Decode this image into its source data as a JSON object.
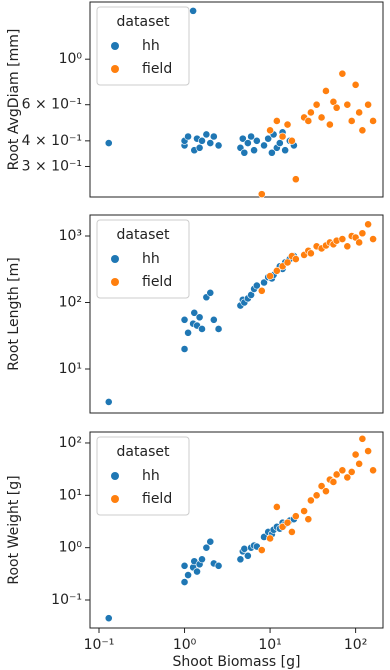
{
  "chart_data": [
    {
      "type": "scatter",
      "ylabel": "Root AvgDiam [mm]",
      "xscale": "log",
      "yscale": "log",
      "xlim": [
        0.0785,
        209
      ],
      "ylim": [
        0.213,
        1.9
      ],
      "yticks": [
        {
          "value": 1,
          "label": "10⁰"
        },
        {
          "value": 0.6,
          "label": "6 × 10⁻¹"
        },
        {
          "value": 0.4,
          "label": "4 × 10⁻¹"
        },
        {
          "value": 0.3,
          "label": "3 × 10⁻¹"
        }
      ],
      "legend_title": "dataset",
      "legend": "upper left",
      "series": [
        {
          "name": "hh",
          "color": "#1f77b4",
          "x": [
            0.13,
            1.0,
            1.0,
            1.1,
            1.26,
            1.3,
            1.4,
            1.5,
            1.6,
            1.8,
            2.0,
            2.2,
            2.5,
            4.5,
            4.8,
            5.0,
            5.5,
            6.0,
            6.5,
            7.0,
            8.5,
            9.5,
            10.5,
            11,
            12,
            13,
            14,
            15,
            17,
            19
          ],
          "values": [
            0.39,
            0.38,
            0.4,
            0.42,
            1.72,
            0.36,
            0.41,
            0.37,
            0.4,
            0.43,
            0.39,
            0.42,
            0.38,
            0.37,
            0.41,
            0.35,
            0.39,
            0.42,
            0.36,
            0.4,
            0.38,
            0.41,
            0.35,
            0.43,
            0.37,
            0.39,
            0.44,
            0.36,
            0.4,
            0.38
          ]
        },
        {
          "name": "field",
          "color": "#ff7f0e",
          "x": [
            8,
            10,
            12,
            14,
            16,
            18,
            20,
            25,
            28,
            30,
            35,
            40,
            45,
            50,
            55,
            60,
            70,
            80,
            90,
            100,
            110,
            120,
            140,
            160
          ],
          "values": [
            0.22,
            0.45,
            0.5,
            0.42,
            0.48,
            0.4,
            0.26,
            0.52,
            0.5,
            0.55,
            0.6,
            0.52,
            0.7,
            0.48,
            0.62,
            0.58,
            0.85,
            0.6,
            0.5,
            0.75,
            0.55,
            0.45,
            0.6,
            0.5
          ]
        }
      ]
    },
    {
      "type": "scatter",
      "ylabel": "Root Length [m]",
      "xscale": "log",
      "yscale": "log",
      "xlim": [
        0.0785,
        209
      ],
      "ylim": [
        2.18,
        2070
      ],
      "yticks": [
        {
          "value": 1000,
          "label": "10³"
        },
        {
          "value": 100,
          "label": "10²"
        },
        {
          "value": 10,
          "label": "10¹"
        }
      ],
      "legend_title": "dataset",
      "legend": "upper left",
      "series": [
        {
          "name": "hh",
          "color": "#1f77b4",
          "x": [
            0.13,
            1.0,
            1.0,
            1.1,
            1.26,
            1.3,
            1.4,
            1.5,
            1.6,
            1.8,
            2.0,
            2.2,
            2.5,
            4.5,
            4.8,
            5.0,
            5.5,
            6.0,
            6.5,
            7.0,
            8.5,
            9.5,
            10.5,
            11,
            12,
            13,
            14,
            15,
            17,
            19
          ],
          "values": [
            3.2,
            55,
            20,
            35,
            48,
            70,
            45,
            60,
            40,
            120,
            140,
            55,
            40,
            90,
            110,
            100,
            115,
            130,
            160,
            180,
            200,
            240,
            230,
            260,
            300,
            350,
            320,
            400,
            450,
            500
          ]
        },
        {
          "name": "field",
          "color": "#ff7f0e",
          "x": [
            8,
            10,
            12,
            14,
            16,
            18,
            20,
            25,
            28,
            30,
            35,
            40,
            45,
            50,
            55,
            60,
            70,
            80,
            90,
            100,
            110,
            120,
            140,
            160
          ],
          "values": [
            150,
            250,
            300,
            350,
            400,
            500,
            450,
            520,
            600,
            550,
            700,
            650,
            720,
            800,
            750,
            850,
            900,
            700,
            1000,
            950,
            800,
            1100,
            1500,
            900
          ]
        }
      ]
    },
    {
      "type": "scatter",
      "ylabel": "Root Weight [g]",
      "xlabel": "Shoot Biomass [g]",
      "xscale": "log",
      "yscale": "log",
      "xlim": [
        0.0785,
        209
      ],
      "ylim": [
        0.0292,
        162
      ],
      "xticks": [
        {
          "value": 0.1,
          "label": "10⁻¹"
        },
        {
          "value": 1,
          "label": "10⁰"
        },
        {
          "value": 10,
          "label": "10¹"
        },
        {
          "value": 100,
          "label": "10²"
        }
      ],
      "yticks": [
        {
          "value": 100,
          "label": "10²"
        },
        {
          "value": 10,
          "label": "10¹"
        },
        {
          "value": 1,
          "label": "10⁰"
        },
        {
          "value": 0.1,
          "label": "10⁻¹"
        }
      ],
      "legend_title": "dataset",
      "legend": "upper left",
      "series": [
        {
          "name": "hh",
          "color": "#1f77b4",
          "x": [
            0.13,
            1.0,
            1.0,
            1.1,
            1.26,
            1.3,
            1.4,
            1.5,
            1.6,
            1.8,
            2.0,
            2.2,
            2.5,
            4.5,
            4.8,
            5.0,
            5.5,
            6.0,
            6.5,
            7.0,
            8.5,
            9.5,
            10.5,
            11,
            12,
            13,
            14,
            15,
            17,
            19
          ],
          "values": [
            0.045,
            0.45,
            0.22,
            0.3,
            0.42,
            0.55,
            0.35,
            0.48,
            0.6,
            1.0,
            1.3,
            0.5,
            0.45,
            0.6,
            0.85,
            0.95,
            0.7,
            1.0,
            1.1,
            1.05,
            1.6,
            2.0,
            1.8,
            2.2,
            2.5,
            2.3,
            3.0,
            2.8,
            3.3,
            3.5
          ]
        },
        {
          "name": "field",
          "color": "#ff7f0e",
          "x": [
            8,
            10,
            12,
            14,
            16,
            18,
            20,
            25,
            28,
            30,
            35,
            40,
            45,
            50,
            55,
            60,
            70,
            80,
            90,
            100,
            110,
            120,
            140,
            160
          ],
          "values": [
            0.9,
            1.5,
            6,
            2.5,
            3.0,
            2.0,
            4.0,
            5.0,
            3.5,
            8.0,
            10,
            15,
            12,
            20,
            18,
            25,
            30,
            22,
            28,
            60,
            40,
            120,
            70,
            30
          ]
        }
      ]
    }
  ]
}
